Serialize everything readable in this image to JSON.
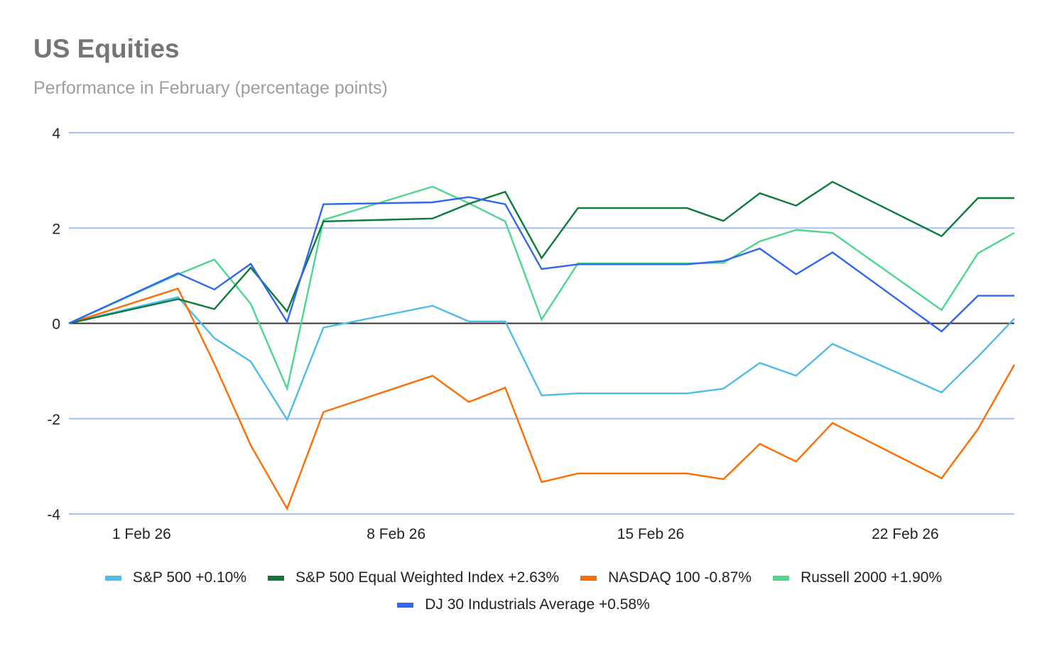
{
  "chart_data": {
    "type": "line",
    "title": "US Equities",
    "subtitle": "Performance in February (percentage points)",
    "xlabel": "",
    "ylabel": "",
    "ylim": [
      -4,
      4
    ],
    "yticks": [
      4,
      2,
      0,
      -2,
      -4
    ],
    "ytick_labels": [
      "4",
      "2",
      "0",
      "-2",
      "-4"
    ],
    "grid": true,
    "legend_position": "bottom",
    "x_day_offsets": [
      -2,
      1,
      2,
      3,
      4,
      5,
      8,
      9,
      10,
      11,
      12,
      15,
      16,
      17,
      18,
      19,
      22,
      23,
      24
    ],
    "x": [
      "30 Jan 26",
      "2 Feb 26",
      "3 Feb 26",
      "4 Feb 26",
      "5 Feb 26",
      "6 Feb 26",
      "9 Feb 26",
      "10 Feb 26",
      "11 Feb 26",
      "12 Feb 26",
      "13 Feb 26",
      "16 Feb 26",
      "17 Feb 26",
      "18 Feb 26",
      "19 Feb 26",
      "20 Feb 26",
      "23 Feb 26",
      "24 Feb 26",
      "25 Feb 26"
    ],
    "xticks": [
      {
        "label": "1 Feb 26",
        "day_offset": 0
      },
      {
        "label": "8 Feb 26",
        "day_offset": 7
      },
      {
        "label": "15 Feb 26",
        "day_offset": 14
      },
      {
        "label": "22 Feb 26",
        "day_offset": 21
      }
    ],
    "x_range_day_offsets": [
      -2,
      24
    ],
    "series": [
      {
        "name": "S&P 500 +0.10%",
        "color": "#4dbce9",
        "values": [
          0,
          0.55,
          -0.31,
          -0.8,
          -2.02,
          -0.09,
          0.37,
          0.04,
          0.04,
          -1.51,
          -1.47,
          -1.47,
          -1.37,
          -0.83,
          -1.1,
          -0.43,
          -1.45,
          -0.7,
          0.1
        ]
      },
      {
        "name": "S&P 500 Equal Weighted Index +2.63%",
        "color": "#0b7a3a",
        "values": [
          0,
          0.51,
          0.3,
          1.17,
          0.25,
          2.14,
          2.2,
          2.51,
          2.76,
          1.37,
          2.42,
          2.42,
          2.15,
          2.73,
          2.47,
          2.97,
          1.83,
          2.63,
          2.63
        ]
      },
      {
        "name": "NASDAQ 100 -0.87%",
        "color": "#ff6d01",
        "values": [
          0,
          0.73,
          -0.85,
          -2.56,
          -3.89,
          -1.86,
          -1.1,
          -1.65,
          -1.35,
          -3.33,
          -3.15,
          -3.15,
          -3.27,
          -2.53,
          -2.9,
          -2.09,
          -3.25,
          -2.22,
          -0.87
        ]
      },
      {
        "name": "Russell 2000 +1.90%",
        "color": "#4cd68e",
        "values": [
          0,
          1.03,
          1.34,
          0.41,
          -1.37,
          2.17,
          2.87,
          2.52,
          2.14,
          0.08,
          1.26,
          1.26,
          1.27,
          1.72,
          1.96,
          1.9,
          0.28,
          1.47,
          1.9
        ]
      },
      {
        "name": "DJ 30 Industrials Average +0.58%",
        "color": "#2f67f0",
        "values": [
          0,
          1.05,
          0.71,
          1.25,
          0.03,
          2.5,
          2.54,
          2.65,
          2.5,
          1.14,
          1.24,
          1.24,
          1.31,
          1.57,
          1.03,
          1.49,
          -0.17,
          0.58,
          0.58
        ]
      }
    ],
    "legend_rows": [
      [
        0,
        1,
        2,
        3
      ],
      [
        4
      ]
    ]
  },
  "colors": {
    "gridline": "#a6c2f2",
    "zero_line": "#333333",
    "title": "#757575",
    "subtitle": "#9e9e9e"
  }
}
